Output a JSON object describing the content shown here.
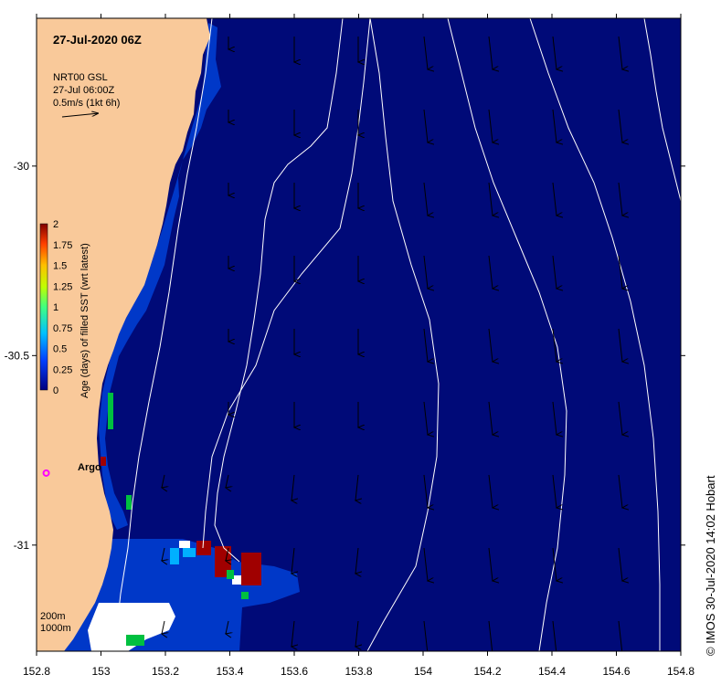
{
  "title": "27-Jul-2020 06Z",
  "legend": {
    "product": "NRT00 GSL",
    "time": "27-Jul 06:00Z",
    "vector_scale": "0.5m/s (1kt 6h)"
  },
  "colorbar": {
    "label": "Age (days) of filled SST (wrt latest)",
    "ticks": [
      "0",
      "0.25",
      "0.5",
      "0.75",
      "1",
      "1.25",
      "1.5",
      "1.75",
      "2"
    ],
    "min": 0,
    "max": 2
  },
  "axes": {
    "x_ticks": [
      "152.8",
      "153",
      "153.2",
      "153.4",
      "153.6",
      "153.8",
      "154",
      "154.2",
      "154.4",
      "154.6",
      "154.8"
    ],
    "y_ticks": [
      "-30",
      "-30.5",
      "-31"
    ],
    "xlim": [
      152.8,
      154.8
    ],
    "ylim": [
      -31.28,
      -29.61
    ]
  },
  "marker": {
    "label": "Argo",
    "lon": 152.83,
    "lat": -30.81
  },
  "depth_contours": [
    "200m",
    "1000m"
  ],
  "credit": "© IMOS 30-Jul-2020 14:02 Hobart",
  "colors": {
    "land": "#f9c99a",
    "sea": "#000a78",
    "fresh": "#0038c8",
    "arrow": "#000000",
    "contour": "#ffffff",
    "marker": "#ff00ff"
  }
}
